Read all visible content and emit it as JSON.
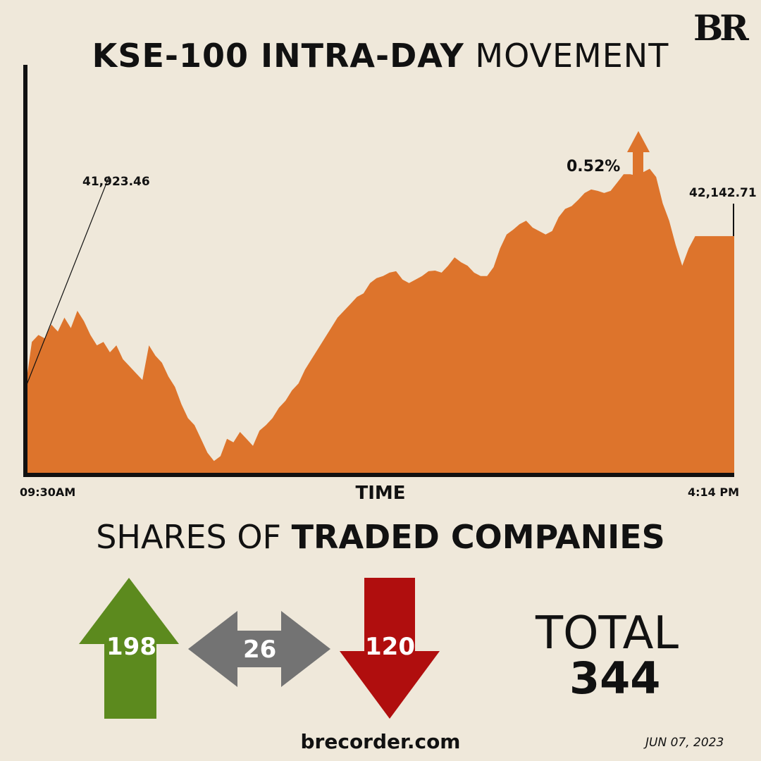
{
  "brand": {
    "logo_text": "BR",
    "website": "brecorder.com",
    "date": "JUN 07, 2023"
  },
  "colors": {
    "background": "#efe8da",
    "area_fill": "#dd742c",
    "gainers": "#5c8a1e",
    "unchanged": "#737373",
    "losers": "#b00e0e"
  },
  "chart_data": {
    "type": "area",
    "title_bold": "KSE-100 INTRA-DAY",
    "title_light": "MOVEMENT",
    "xlabel": "TIME",
    "x_start_label": "09:30AM",
    "x_end_label": "4:14 PM",
    "open_value": "41,923.46",
    "close_value": "42,142.71",
    "change_percent": "0.52%",
    "change_direction": "up",
    "x_range": [
      "09:30",
      "16:14"
    ],
    "ylim": [
      41800,
      42390
    ],
    "series": [
      {
        "values": [
          41923.46,
          41990,
          42000,
          41995,
          42015,
          42005,
          42025,
          42010,
          42035,
          42020,
          42000,
          41985,
          41990,
          41975,
          41985,
          41965,
          41955,
          41945,
          41935,
          41985,
          41970,
          41960,
          41940,
          41925,
          41900,
          41880,
          41870,
          41850,
          41830,
          41818,
          41825,
          41850,
          41845,
          41860,
          41850,
          41840,
          41862,
          41870,
          41880,
          41895,
          41905,
          41920,
          41930,
          41950,
          41965,
          41980,
          41995,
          42010,
          42025,
          42035,
          42045,
          42055,
          42060,
          42075,
          42082,
          42085,
          42090,
          42092,
          42080,
          42075,
          42080,
          42085,
          42092,
          42093,
          42090,
          42100,
          42112,
          42105,
          42100,
          42090,
          42085,
          42085,
          42098,
          42125,
          42145,
          42152,
          42160,
          42165,
          42155,
          42150,
          42145,
          42150,
          42170,
          42182,
          42186,
          42195,
          42205,
          42210,
          42208,
          42205,
          42208,
          42220,
          42232,
          42232,
          42230,
          42235,
          42240,
          42228,
          42190,
          42165,
          42130,
          42100,
          42125,
          42142.71,
          42142.71,
          42142.71,
          42142.71,
          42142.71,
          42142.71,
          42142.71
        ]
      }
    ]
  },
  "breadth": {
    "title_light": "SHARES OF",
    "title_bold": "TRADED COMPANIES",
    "advancers": 198,
    "unchanged": 26,
    "decliners": 120,
    "total_label": "TOTAL",
    "total": 344
  }
}
